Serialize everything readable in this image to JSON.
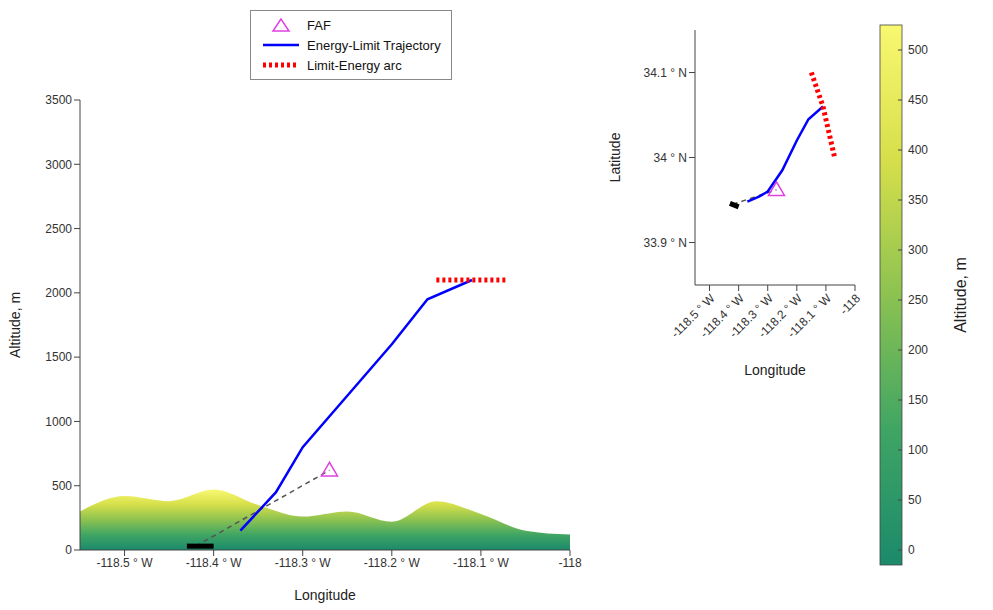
{
  "chart_data": {
    "type": "line3d",
    "xlabel": "Longitude",
    "ylabel": "Latitude",
    "zlabel": "Altitude, m",
    "grid": false,
    "legend": "top",
    "xlim": [
      -118.55,
      -118.0
    ],
    "xticks": [
      {
        "value": -118.5,
        "label": "-118.5 ° W"
      },
      {
        "value": -118.4,
        "label": "-118.4 ° W"
      },
      {
        "value": -118.3,
        "label": "-118.3 ° W"
      },
      {
        "value": -118.2,
        "label": "-118.2 ° W"
      },
      {
        "value": -118.1,
        "label": "-118.1 ° W"
      },
      {
        "value": -118,
        "label": "-118"
      }
    ],
    "ylim": [
      33.85,
      34.15
    ],
    "yticks": [
      {
        "value": 33.9,
        "label": "33.9 ° N"
      },
      {
        "value": 34,
        "label": "34 ° N"
      },
      {
        "value": 34.1,
        "label": "34.1 ° N"
      }
    ],
    "zlim": [
      0,
      3500
    ],
    "zticks": [
      0,
      500,
      1000,
      1500,
      2000,
      2500,
      3000,
      3500
    ],
    "series": [
      {
        "name": "FAF",
        "type": "scatter",
        "marker": "triangle",
        "color": "#e040e0",
        "x": [
          -118.27
        ],
        "y": [
          33.962
        ],
        "z": [
          620
        ]
      },
      {
        "name": "Energy-Limit Trajectory",
        "type": "line",
        "line_style": "solid",
        "color": "#0000ff",
        "x": [
          -118.37,
          -118.33,
          -118.3,
          -118.25,
          -118.2,
          -118.16,
          -118.11
        ],
        "y": [
          33.948,
          33.954,
          33.96,
          33.985,
          34.02,
          34.045,
          34.06
        ],
        "z": [
          150,
          450,
          800,
          1200,
          1600,
          1950,
          2100
        ]
      },
      {
        "name": "Limit-Energy arc",
        "type": "line",
        "line_style": "dotted",
        "color": "#ff0000",
        "x": [
          -118.15,
          -118.13,
          -118.11,
          -118.09,
          -118.07
        ],
        "y": [
          34.1,
          34.08,
          34.06,
          34.03,
          34.0
        ],
        "z": [
          2100,
          2100,
          2100,
          2100,
          2100
        ]
      }
    ],
    "approach_path": {
      "color": "#555555",
      "line_style": "dashed",
      "x": [
        -118.42,
        -118.27
      ],
      "y": [
        33.945,
        33.962
      ],
      "z": [
        30,
        620
      ]
    },
    "runway": {
      "color": "#000000",
      "x": [
        -118.43,
        -118.4
      ],
      "y": [
        33.946,
        33.942
      ],
      "z": [
        30,
        30
      ]
    },
    "surface": {
      "x": [
        -118.55,
        -118.5,
        -118.45,
        -118.4,
        -118.35,
        -118.3,
        -118.25,
        -118.2,
        -118.15,
        -118.1,
        -118.05,
        -118.0
      ],
      "z": [
        300,
        420,
        380,
        470,
        350,
        260,
        300,
        220,
        380,
        280,
        150,
        120
      ]
    },
    "colorbar": {
      "label": "Altitude, m",
      "range": [
        -15,
        525
      ],
      "ticks": [
        0,
        50,
        100,
        150,
        200,
        250,
        300,
        350,
        400,
        450,
        500
      ],
      "colors": [
        "#1b8a6b",
        "#3fa564",
        "#8cc251",
        "#d6df4a",
        "#f9f871"
      ]
    }
  }
}
